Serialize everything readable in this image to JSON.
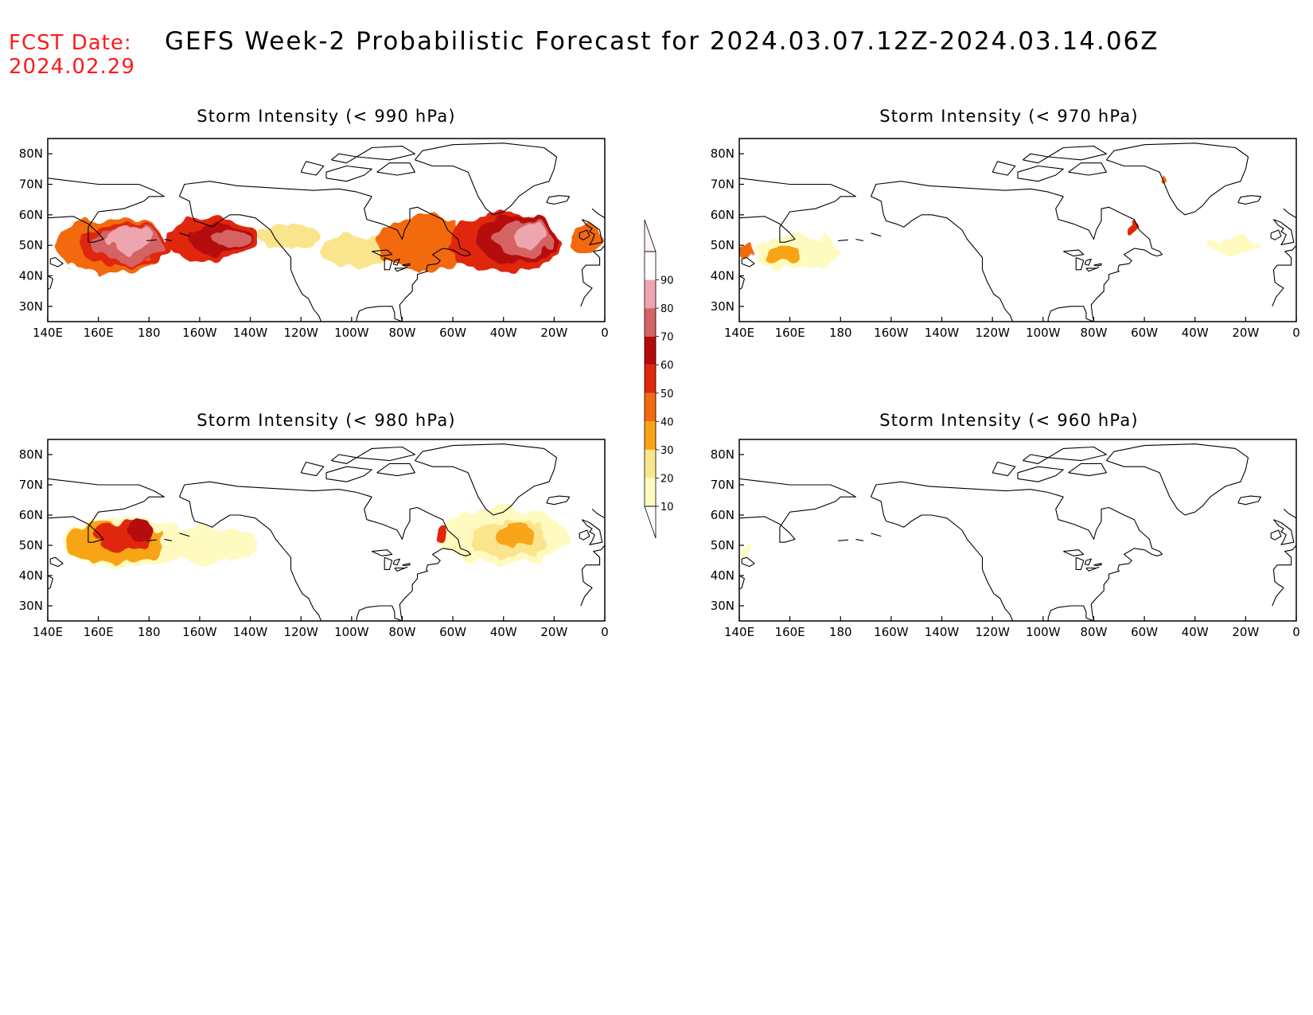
{
  "header": {
    "fcst_label": "FCST Date:",
    "fcst_date": "2024.02.29",
    "title": "GEFS Week-2 Probabilistic Forecast for 2024.03.07.12Z-2024.03.14.06Z"
  },
  "axes": {
    "lon_labels": [
      "140E",
      "160E",
      "180",
      "160W",
      "140W",
      "120W",
      "100W",
      "80W",
      "60W",
      "40W",
      "20W",
      "0"
    ],
    "lat_labels": [
      "80N",
      "70N",
      "60N",
      "50N",
      "40N",
      "30N"
    ],
    "lon_range_deg_east": [
      140,
      360
    ],
    "lat_range": [
      25,
      85
    ]
  },
  "colorbar": {
    "levels": [
      "10",
      "20",
      "30",
      "40",
      "50",
      "60",
      "70",
      "80",
      "90"
    ],
    "colors": [
      "#fffbc0",
      "#fbe58c",
      "#f7a516",
      "#f26a0b",
      "#e0260b",
      "#b50b0b",
      "#d56464",
      "#eda6b0",
      "#ffffff"
    ]
  },
  "panels": [
    {
      "title": "Storm Intensity (< 990 hPa)",
      "blobs": [
        {
          "lon": 165,
          "lat": 50,
          "rlon": 22,
          "rlat": 9,
          "level": 3
        },
        {
          "lon": 170,
          "lat": 50,
          "rlon": 18,
          "rlat": 7,
          "level": 4
        },
        {
          "lon": 172,
          "lat": 50,
          "rlon": 14,
          "rlat": 6,
          "level": 6
        },
        {
          "lon": 172,
          "lat": 52,
          "rlon": 9,
          "rlat": 4,
          "level": 7
        },
        {
          "lon": 205,
          "lat": 52,
          "rlon": 18,
          "rlat": 7,
          "level": 4
        },
        {
          "lon": 208,
          "lat": 52,
          "rlon": 12,
          "rlat": 5,
          "level": 5
        },
        {
          "lon": 212,
          "lat": 52,
          "rlon": 7,
          "rlat": 3,
          "level": 6
        },
        {
          "lon": 235,
          "lat": 53,
          "rlon": 12,
          "rlat": 4,
          "level": 1
        },
        {
          "lon": 262,
          "lat": 48,
          "rlon": 14,
          "rlat": 5,
          "level": 1
        },
        {
          "lon": 288,
          "lat": 51,
          "rlon": 18,
          "rlat": 9,
          "level": 3
        },
        {
          "lon": 320,
          "lat": 51,
          "rlon": 22,
          "rlat": 10,
          "level": 4
        },
        {
          "lon": 325,
          "lat": 52,
          "rlon": 16,
          "rlat": 8,
          "level": 5
        },
        {
          "lon": 328,
          "lat": 52,
          "rlon": 11,
          "rlat": 6,
          "level": 6
        },
        {
          "lon": 330,
          "lat": 53,
          "rlon": 7,
          "rlat": 4,
          "level": 7
        },
        {
          "lon": 352,
          "lat": 52,
          "rlon": 6,
          "rlat": 5,
          "level": 3
        }
      ]
    },
    {
      "title": "Storm Intensity (< 970 hPa)",
      "blobs": [
        {
          "lon": 162,
          "lat": 48,
          "rlon": 16,
          "rlat": 6,
          "level": 0
        },
        {
          "lon": 158,
          "lat": 47,
          "rlon": 6,
          "rlat": 3,
          "level": 2
        },
        {
          "lon": 142,
          "lat": 48,
          "rlon": 2,
          "rlat": 2,
          "level": 3
        },
        {
          "lon": 295,
          "lat": 55,
          "rlon": 2,
          "rlat": 2.5,
          "level": 4
        },
        {
          "lon": 335,
          "lat": 50,
          "rlon": 10,
          "rlat": 3,
          "level": 0
        },
        {
          "lon": 307,
          "lat": 71,
          "rlon": 1,
          "rlat": 1.5,
          "level": 3
        }
      ]
    },
    {
      "title": "Storm Intensity (< 980 hPa)",
      "blobs": [
        {
          "lon": 170,
          "lat": 51,
          "rlon": 26,
          "rlat": 8,
          "level": 0
        },
        {
          "lon": 166,
          "lat": 51,
          "rlon": 20,
          "rlat": 7,
          "level": 2
        },
        {
          "lon": 170,
          "lat": 53,
          "rlon": 12,
          "rlat": 5,
          "level": 4
        },
        {
          "lon": 177,
          "lat": 55,
          "rlon": 5,
          "rlat": 3,
          "level": 5
        },
        {
          "lon": 205,
          "lat": 50,
          "rlon": 18,
          "rlat": 6,
          "level": 0
        },
        {
          "lon": 320,
          "lat": 53,
          "rlon": 26,
          "rlat": 9,
          "level": 0
        },
        {
          "lon": 322,
          "lat": 52,
          "rlon": 16,
          "rlat": 6,
          "level": 1
        },
        {
          "lon": 325,
          "lat": 53,
          "rlon": 8,
          "rlat": 4,
          "level": 2
        },
        {
          "lon": 296,
          "lat": 54,
          "rlon": 2.5,
          "rlat": 3,
          "level": 4
        }
      ]
    },
    {
      "title": "Storm Intensity (< 960 hPa)",
      "blobs": [
        {
          "lon": 143,
          "lat": 48,
          "rlon": 1.5,
          "rlat": 2,
          "level": 0
        }
      ]
    }
  ]
}
